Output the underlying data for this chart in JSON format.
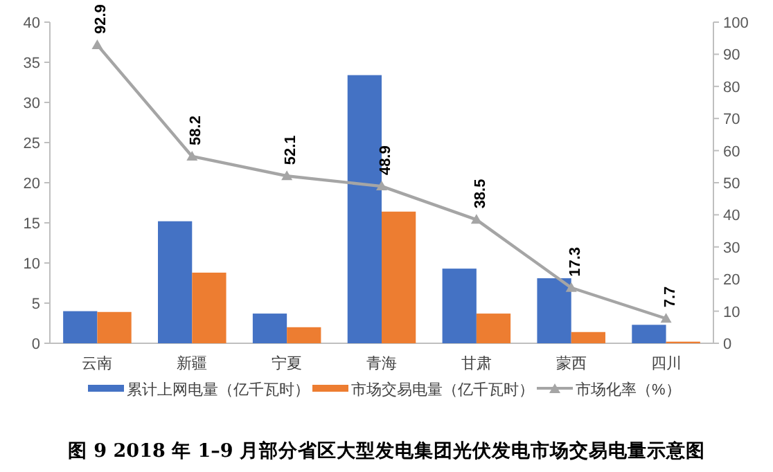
{
  "chart_data": {
    "type": "bar",
    "title": "图 9 2018 年 1–9 月部分省区大型发电集团光伏发电市场交易电量示意图",
    "categories": [
      "云南",
      "新疆",
      "宁夏",
      "青海",
      "甘肃",
      "蒙西",
      "四川"
    ],
    "series": [
      {
        "name": "累计上网电量（亿千瓦时）",
        "color": "#4472c4",
        "values": [
          4.0,
          15.2,
          3.7,
          33.4,
          9.3,
          8.1,
          2.3
        ]
      },
      {
        "name": "市场交易电量（亿千瓦时）",
        "color": "#ed7d31",
        "values": [
          3.9,
          8.8,
          2.0,
          16.4,
          3.7,
          1.4,
          0.2
        ]
      },
      {
        "name": "市场化率（%）",
        "color": "#a5a5a5",
        "type": "line",
        "axis": "y2",
        "marker": "triangle",
        "data_labels": true,
        "values": [
          92.9,
          58.2,
          52.1,
          48.9,
          38.5,
          17.3,
          7.7
        ]
      }
    ],
    "ylim": [
      0,
      40
    ],
    "yticks": [
      0,
      5,
      10,
      15,
      20,
      25,
      30,
      35,
      40
    ],
    "y2lim": [
      0,
      100
    ],
    "y2ticks": [
      0,
      10,
      20,
      30,
      40,
      50,
      60,
      70,
      80,
      90,
      100
    ],
    "grid": false,
    "legend": "bottom"
  }
}
